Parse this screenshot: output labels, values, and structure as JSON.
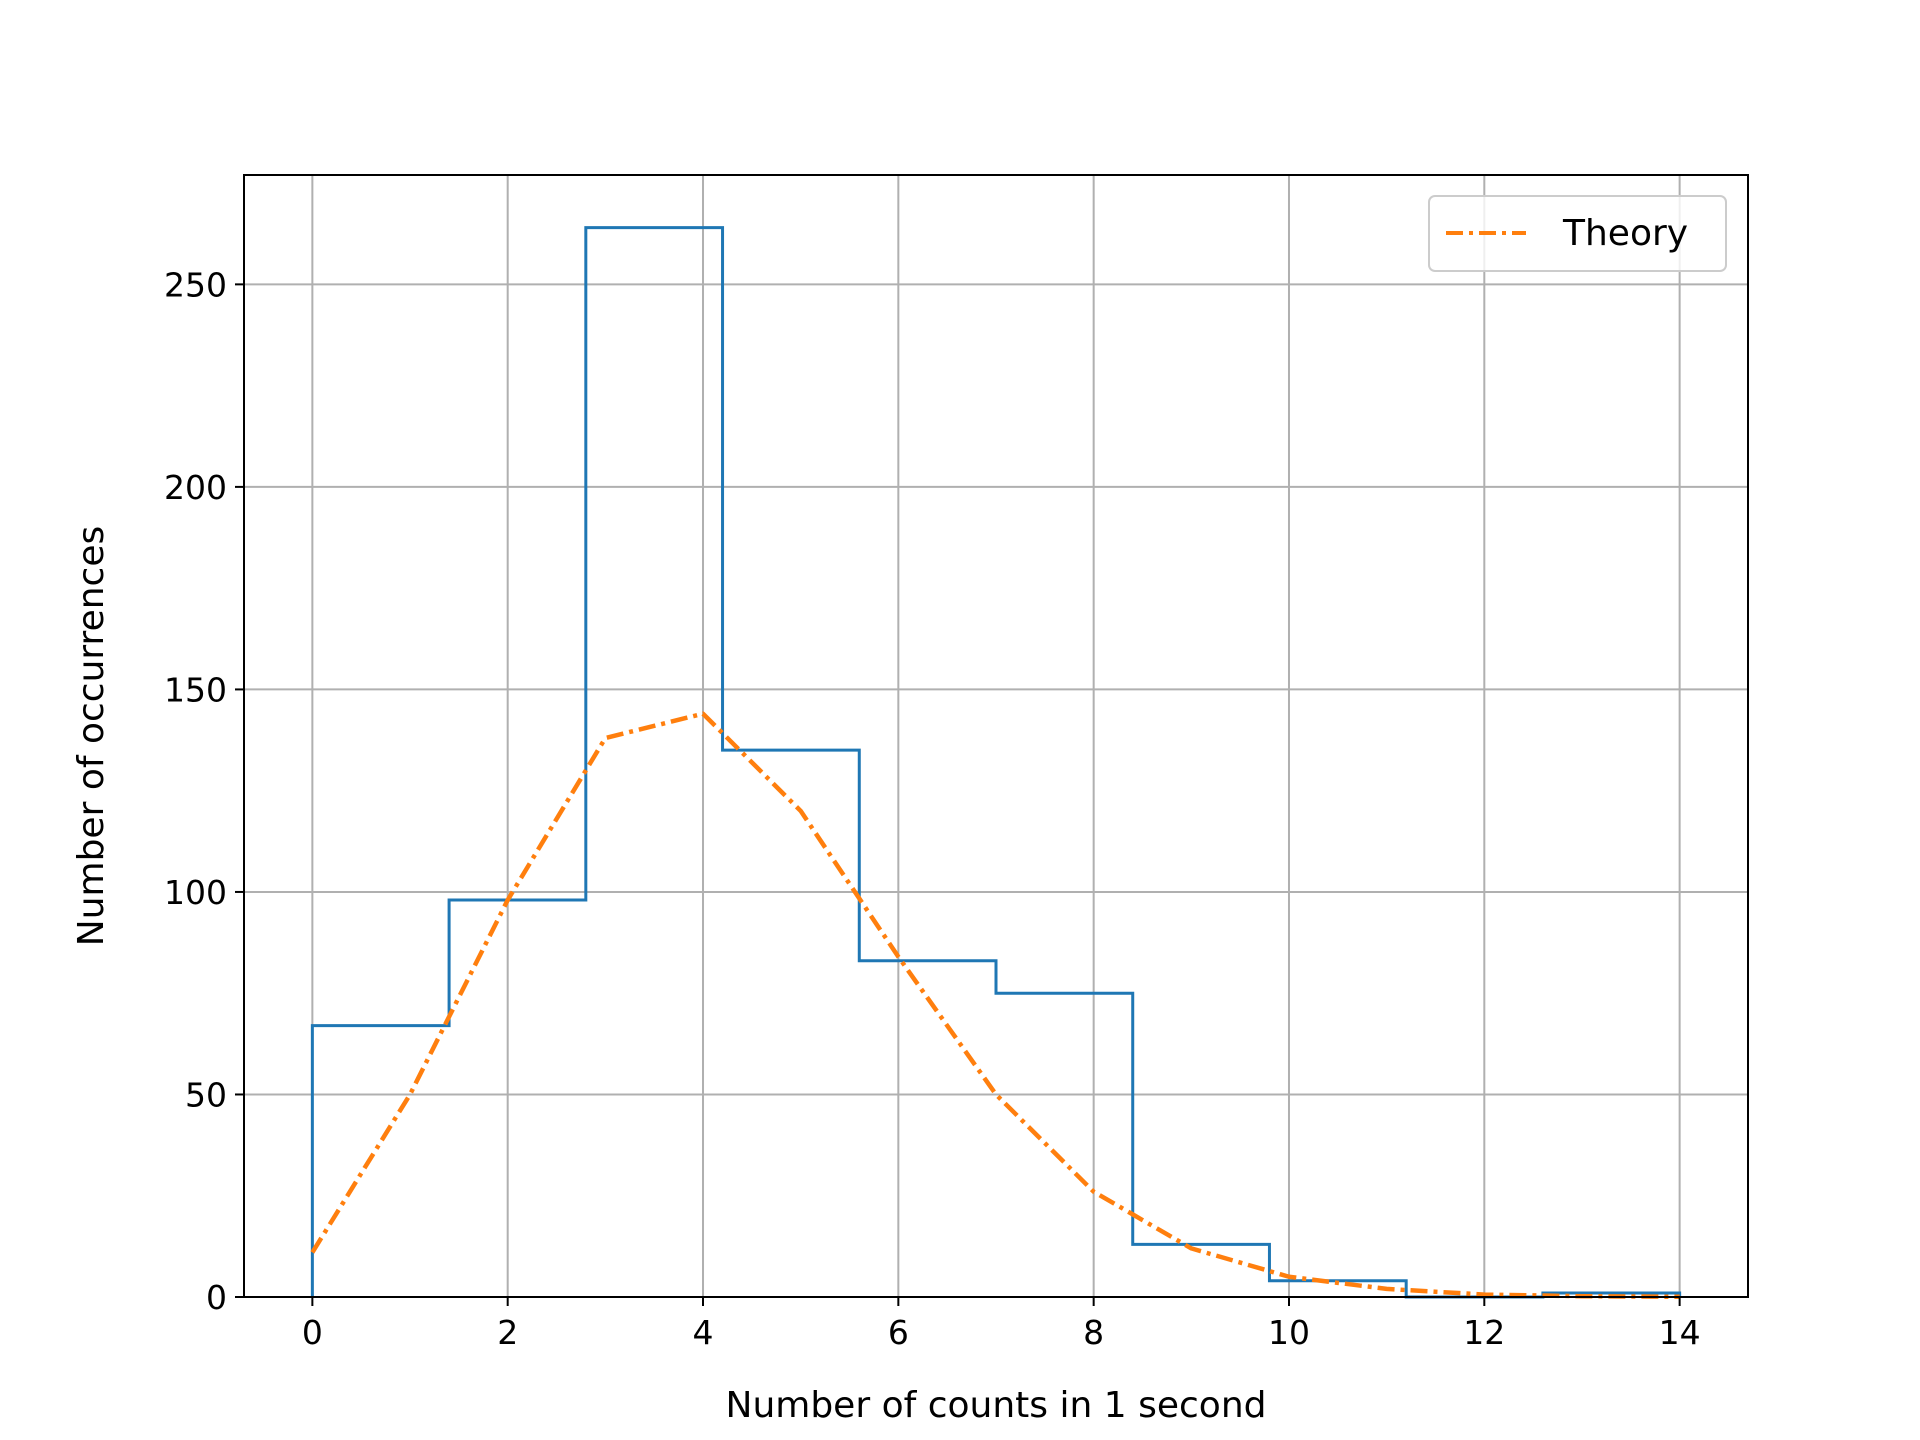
{
  "chart_data": {
    "type": "histogram",
    "title": "",
    "xlabel": "Number of counts in 1 second",
    "ylabel": "Number of occurrences",
    "xlim": [
      -0.7,
      14.7
    ],
    "ylim": [
      0,
      277
    ],
    "xticks": [
      0,
      2,
      4,
      6,
      8,
      10,
      12,
      14
    ],
    "yticks": [
      0,
      50,
      100,
      150,
      200,
      250
    ],
    "grid": true,
    "histogram": {
      "bin_edges": [
        0,
        1.4,
        2.8,
        4.2,
        5.6,
        7.0,
        8.4,
        9.8,
        11.2,
        12.6,
        14.0
      ],
      "counts": [
        67,
        98,
        264,
        135,
        83,
        75,
        13,
        4,
        0,
        1
      ],
      "color": "#1f77b4",
      "style": "step"
    },
    "series": [
      {
        "name": "Theory",
        "type": "line",
        "style": "dash-dot",
        "color": "#ff7f0e",
        "x": [
          0,
          1,
          2,
          3,
          4,
          5,
          6,
          7,
          8,
          9,
          10,
          11,
          12,
          13,
          14
        ],
        "y": [
          11,
          50,
          98,
          138,
          144,
          120,
          84,
          50,
          26,
          12,
          5,
          2,
          0.6,
          0.2,
          0.05
        ]
      }
    ],
    "legend": {
      "position": "top-right",
      "entries": [
        "Theory"
      ]
    }
  }
}
